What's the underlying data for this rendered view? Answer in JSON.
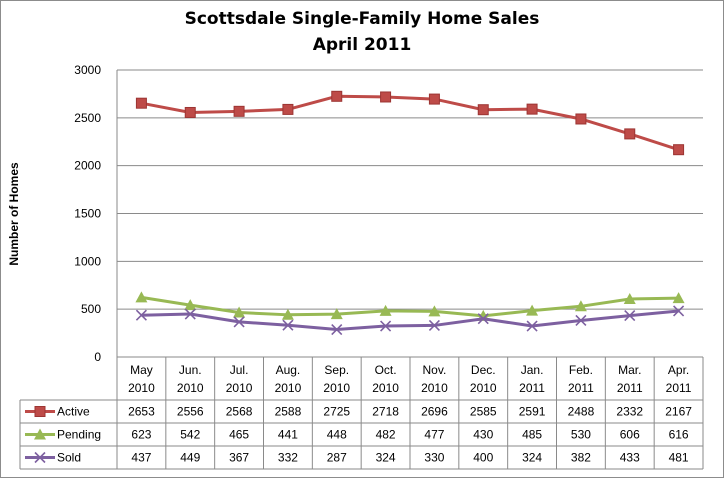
{
  "chart_data": {
    "type": "line",
    "title": "Scottsdale Single-Family Home Sales",
    "subtitle": "April 2011",
    "xlabel": "",
    "ylabel": "Number of Homes",
    "ylim": [
      0,
      3000
    ],
    "yticks": [
      "3000",
      "2500",
      "2000",
      "1500",
      "1000",
      "500",
      "0"
    ],
    "grid": true,
    "legend": "data-table",
    "categories": [
      [
        "May",
        "2010"
      ],
      [
        "Jun.",
        "2010"
      ],
      [
        "Jul.",
        "2010"
      ],
      [
        "Aug.",
        "2010"
      ],
      [
        "Sep.",
        "2010"
      ],
      [
        "Oct.",
        "2010"
      ],
      [
        "Nov.",
        "2010"
      ],
      [
        "Dec.",
        "2010"
      ],
      [
        "Jan.",
        "2011"
      ],
      [
        "Feb.",
        "2011"
      ],
      [
        "Mar.",
        "2011"
      ],
      [
        "Apr.",
        "2011"
      ]
    ],
    "series": [
      {
        "name": "Active",
        "color": "#be4b48",
        "marker": "square",
        "values": [
          2653,
          2556,
          2568,
          2588,
          2725,
          2718,
          2696,
          2585,
          2591,
          2488,
          2332,
          2167
        ]
      },
      {
        "name": "Pending",
        "color": "#98b954",
        "marker": "triangle",
        "values": [
          623,
          542,
          465,
          441,
          448,
          482,
          477,
          430,
          485,
          530,
          606,
          616
        ]
      },
      {
        "name": "Sold",
        "color": "#7d60a0",
        "marker": "x",
        "values": [
          437,
          449,
          367,
          332,
          287,
          324,
          330,
          400,
          324,
          382,
          433,
          481
        ]
      }
    ]
  }
}
